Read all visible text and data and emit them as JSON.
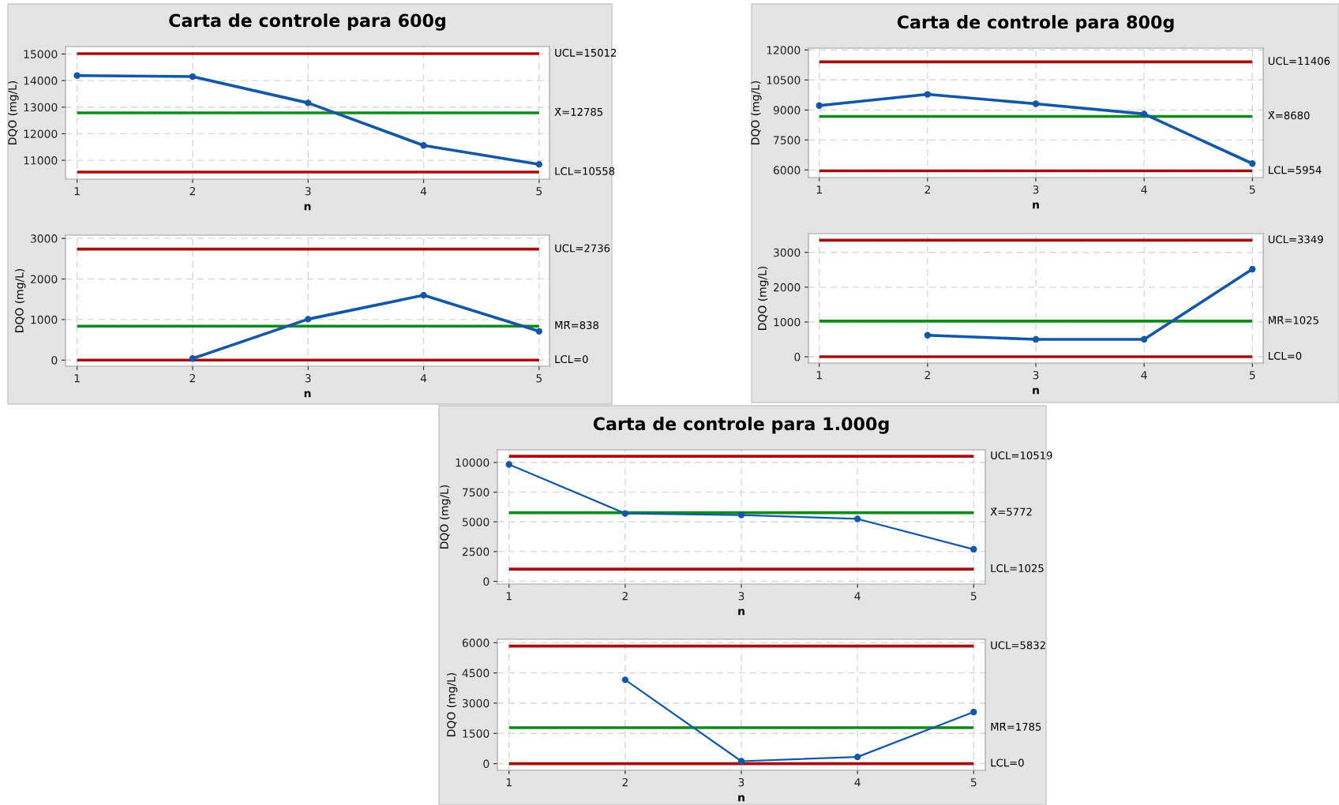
{
  "chart_data": [
    {
      "type": "line",
      "title": "Carta de controle para 600g",
      "xlabel": "n",
      "ylabel": "DQO (mg/L)",
      "x": [
        1,
        2,
        3,
        4,
        5
      ],
      "xlim": [
        0.9,
        5.09
      ],
      "xticks": [
        1,
        2,
        3,
        4,
        5
      ],
      "ylim": [
        10290,
        15280
      ],
      "yticks": [
        11000,
        12000,
        13000,
        14000,
        15000
      ],
      "grid": true,
      "marker": "circle",
      "line_style": "solid",
      "series": [
        {
          "color": "#1257a8",
          "values": [
            14190,
            14150,
            13160,
            11560,
            10850
          ]
        }
      ],
      "ref_lines": [
        {
          "axis": "y",
          "value": 15012,
          "label": "UCL=15012",
          "color": "#a50f0f"
        },
        {
          "axis": "y",
          "value": 12785,
          "label": "X̄=12785",
          "color": "#108a1a"
        },
        {
          "axis": "y",
          "value": 10558,
          "label": "LCL=10558",
          "color": "#a50f0f"
        }
      ]
    },
    {
      "type": "line",
      "xlabel": "n",
      "ylabel": "DQO (mg/L)",
      "xlim": [
        0.9,
        5.09
      ],
      "xticks": [
        1,
        2,
        3,
        4,
        5
      ],
      "ylim": [
        -150,
        3080
      ],
      "yticks": [
        0,
        1000,
        2000,
        3000
      ],
      "grid": true,
      "marker": "circle",
      "line_style": "solid",
      "series": [
        {
          "color": "#1257a8",
          "x": [
            2,
            3,
            4,
            5
          ],
          "values": [
            40,
            1010,
            1600,
            710
          ]
        }
      ],
      "ref_lines": [
        {
          "axis": "y",
          "value": 2736,
          "label": "UCL=2736",
          "color": "#a50f0f"
        },
        {
          "axis": "y",
          "value": 838,
          "label": "M̄R̄=838",
          "color": "#108a1a"
        },
        {
          "axis": "y",
          "value": 0,
          "label": "LCL=0",
          "color": "#a50f0f"
        }
      ]
    },
    {
      "type": "line",
      "title": "Carta de controle para 800g",
      "xlabel": "n",
      "ylabel": "DQO (mg/L)",
      "x": [
        1,
        2,
        3,
        4,
        5
      ],
      "xlim": [
        0.9,
        5.1
      ],
      "xticks": [
        1,
        2,
        3,
        4,
        5
      ],
      "ylim": [
        5620,
        12090
      ],
      "yticks": [
        6000,
        7500,
        9000,
        10500,
        12000
      ],
      "grid": true,
      "marker": "circle",
      "line_style": "solid",
      "series": [
        {
          "color": "#1257a8",
          "values": [
            9220,
            9780,
            9310,
            8800,
            6320
          ]
        }
      ],
      "ref_lines": [
        {
          "axis": "y",
          "value": 11406,
          "label": "UCL=11406",
          "color": "#a50f0f"
        },
        {
          "axis": "y",
          "value": 8680,
          "label": "X̄=8680",
          "color": "#108a1a"
        },
        {
          "axis": "y",
          "value": 5954,
          "label": "LCL=5954",
          "color": "#a50f0f"
        }
      ]
    },
    {
      "type": "line",
      "xlabel": "n",
      "ylabel": "DQO (mg/L)",
      "xlim": [
        0.9,
        5.1
      ],
      "xticks": [
        1,
        2,
        3,
        4,
        5
      ],
      "ylim": [
        -180,
        3540
      ],
      "yticks": [
        0,
        1000,
        2000,
        3000
      ],
      "grid": true,
      "marker": "circle",
      "line_style": "solid",
      "series": [
        {
          "color": "#1257a8",
          "x": [
            2,
            3,
            4,
            5
          ],
          "values": [
            620,
            500,
            500,
            2520
          ]
        }
      ],
      "ref_lines": [
        {
          "axis": "y",
          "value": 3349,
          "label": "UCL=3349",
          "color": "#a50f0f"
        },
        {
          "axis": "y",
          "value": 1025,
          "label": "M̄R̄=1025",
          "color": "#108a1a"
        },
        {
          "axis": "y",
          "value": 0,
          "label": "LCL=0",
          "color": "#a50f0f"
        }
      ]
    },
    {
      "type": "line",
      "title": "Carta de controle para 1.000g",
      "xlabel": "n",
      "ylabel": "DQO (mg/L)",
      "x": [
        1,
        2,
        3,
        4,
        5
      ],
      "xlim": [
        0.9,
        5.1
      ],
      "xticks": [
        1,
        2,
        3,
        4,
        5
      ],
      "ylim": [
        -230,
        11060
      ],
      "yticks": [
        0,
        2500,
        5000,
        7500,
        10000
      ],
      "grid": true,
      "marker": "circle",
      "line_style": "solid",
      "series": [
        {
          "color": "#1257a8",
          "values": [
            9830,
            5710,
            5580,
            5250,
            2690
          ]
        }
      ],
      "ref_lines": [
        {
          "axis": "y",
          "value": 10519,
          "label": "UCL=10519",
          "color": "#a50f0f"
        },
        {
          "axis": "y",
          "value": 5772,
          "label": "X̄=5772",
          "color": "#108a1a"
        },
        {
          "axis": "y",
          "value": 1025,
          "label": "LCL=1025",
          "color": "#a50f0f"
        }
      ]
    },
    {
      "type": "line",
      "xlabel": "n",
      "ylabel": "DQO (mg/L)",
      "xlim": [
        0.9,
        5.1
      ],
      "xticks": [
        1,
        2,
        3,
        4,
        5
      ],
      "ylim": [
        -330,
        6170
      ],
      "yticks": [
        0,
        1500,
        3000,
        4500,
        6000
      ],
      "grid": true,
      "marker": "circle",
      "line_style": "solid",
      "series": [
        {
          "color": "#1257a8",
          "x": [
            2,
            3,
            4,
            5
          ],
          "values": [
            4160,
            120,
            330,
            2560
          ]
        }
      ],
      "ref_lines": [
        {
          "axis": "y",
          "value": 5832,
          "label": "UCL=5832",
          "color": "#a50f0f"
        },
        {
          "axis": "y",
          "value": 1785,
          "label": "M̄R̄=1785",
          "color": "#108a1a"
        },
        {
          "axis": "y",
          "value": 0,
          "label": "LCL=0",
          "color": "#a50f0f"
        }
      ]
    }
  ]
}
